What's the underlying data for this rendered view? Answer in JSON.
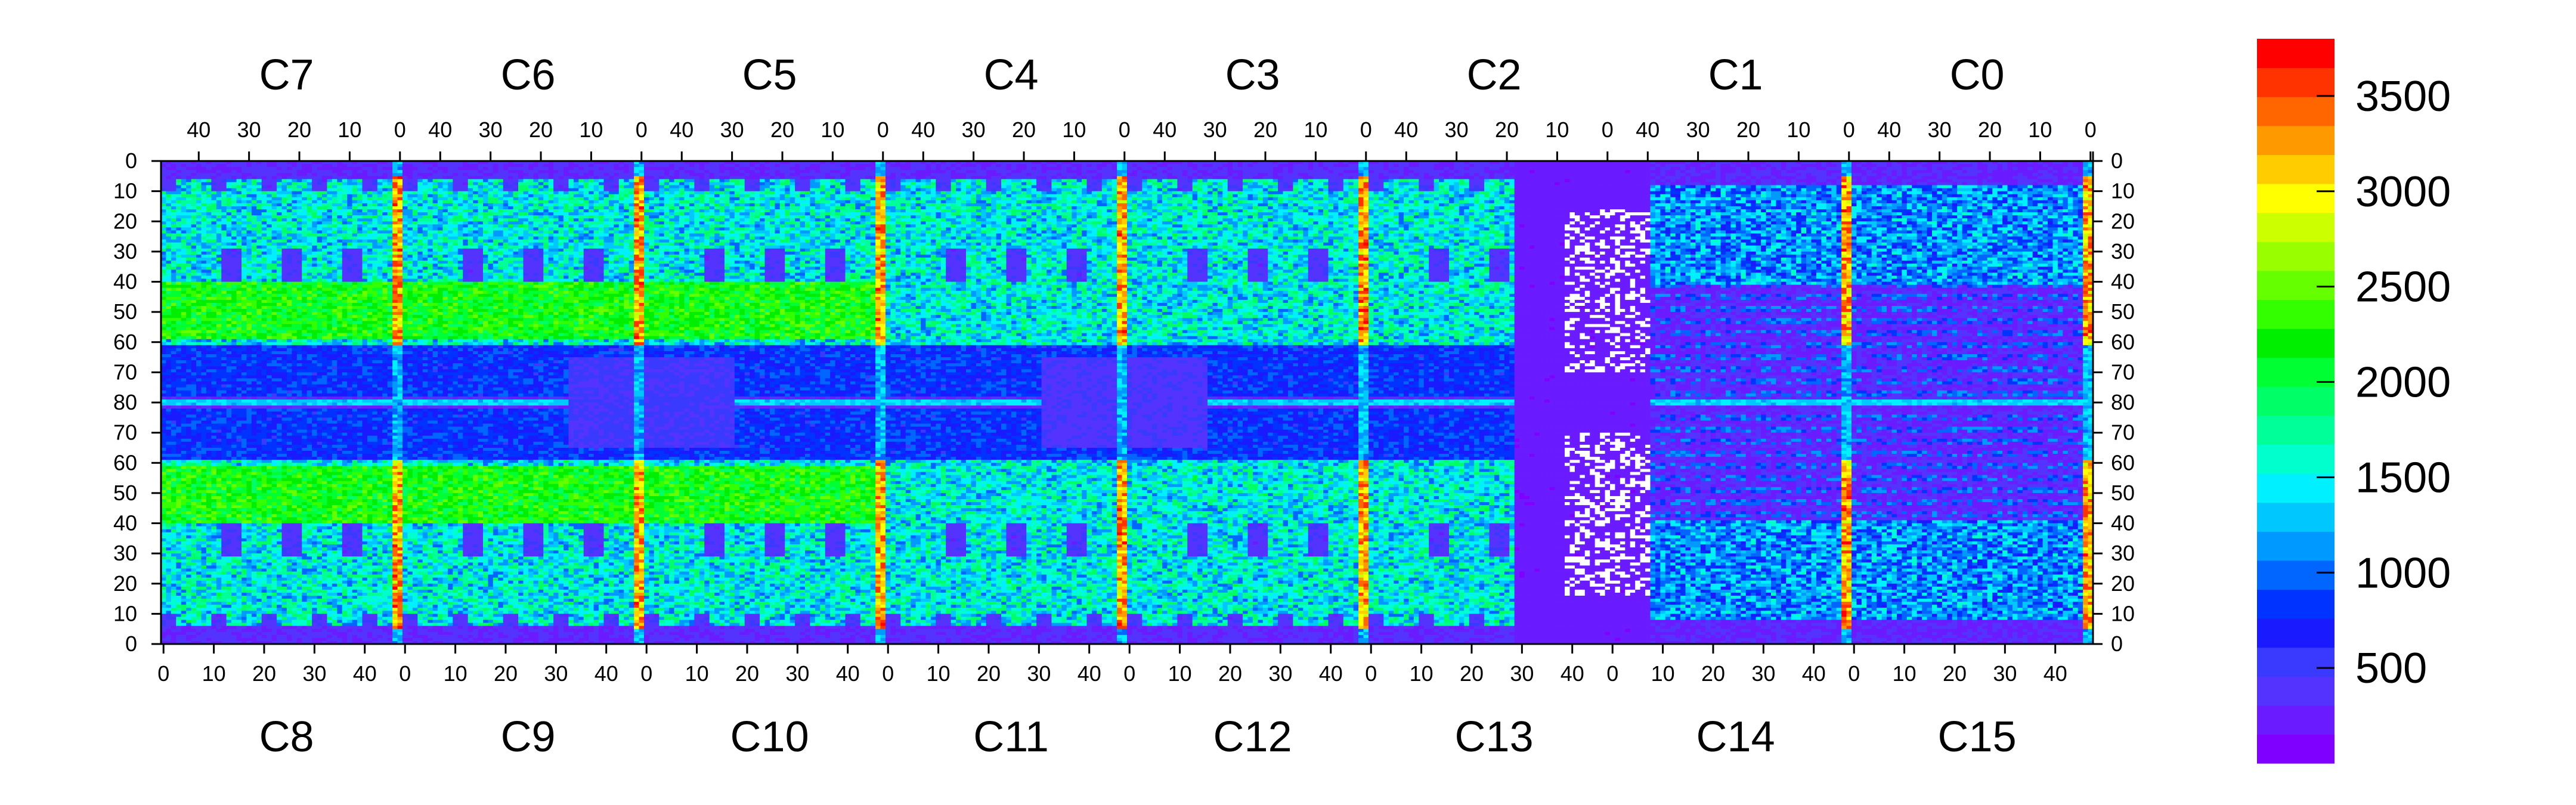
{
  "chart_data": {
    "type": "heatmap",
    "title": "",
    "xlabel": "",
    "ylabel": "",
    "top_channel_labels": [
      "C7",
      "C6",
      "C5",
      "C4",
      "C3",
      "C2",
      "C1",
      "C0"
    ],
    "bottom_channel_labels": [
      "C8",
      "C9",
      "C10",
      "C11",
      "C12",
      "C13",
      "C14",
      "C15"
    ],
    "top_axis_ticks": [
      "40",
      "30",
      "20",
      "10",
      "0"
    ],
    "bottom_axis_ticks": [
      "0",
      "10",
      "20",
      "30",
      "40"
    ],
    "left_axis_ticks": [
      "0",
      "10",
      "20",
      "30",
      "40",
      "50",
      "60",
      "70",
      "80",
      "70",
      "60",
      "50",
      "40",
      "30",
      "20",
      "10",
      "0"
    ],
    "right_axis_ticks": [
      "0",
      "10",
      "20",
      "30",
      "40",
      "50",
      "60",
      "70",
      "80",
      "70",
      "60",
      "50",
      "40",
      "30",
      "20",
      "10",
      "0"
    ],
    "channel_width": 48,
    "rows_per_half": 80,
    "z_range": [
      0,
      3800
    ],
    "colorbar": {
      "ticks": [
        500,
        1000,
        1500,
        2000,
        2500,
        3000,
        3500
      ],
      "tick_labels": [
        "500",
        "1000",
        "1500",
        "2000",
        "2500",
        "3000",
        "3500"
      ],
      "colors": [
        "#7f00ff",
        "#6a1bff",
        "#5533ff",
        "#3a3aff",
        "#1a1aff",
        "#0033ff",
        "#0066ff",
        "#0099ff",
        "#00c8ff",
        "#00f0ff",
        "#00ffcc",
        "#00ff99",
        "#00ff66",
        "#00ff33",
        "#00ee00",
        "#33ff00",
        "#66ff00",
        "#99ff00",
        "#ccff00",
        "#ffff00",
        "#ffcc00",
        "#ff9900",
        "#ff6600",
        "#ff3300",
        "#ff0000"
      ]
    },
    "grid": false,
    "legend": "colorbar-right",
    "regions": {
      "background_level": 200,
      "dense_bands": [
        {
          "columns": "C7-C3 / C8-C12",
          "rows": "10-60",
          "level": 1800
        },
        {
          "columns": "C0-C1 / C14-C15",
          "rows": "10-40",
          "level": 1500
        }
      ],
      "hot_columns_at_zero": [
        "C7|C6",
        "C6|C5",
        "C5|C4",
        "C4|C3",
        "C3|C2",
        "C1|C0"
      ],
      "hot_column_level": 3500,
      "cold_block": {
        "columns": "C6-C5 / C9-C10",
        "rows": "70-80",
        "level": 400
      },
      "dead_region": {
        "columns": "C13-C14",
        "level": 200
      },
      "empty_pixels_region": {
        "columns": "C13-C14 near 0",
        "level": 0
      }
    }
  }
}
